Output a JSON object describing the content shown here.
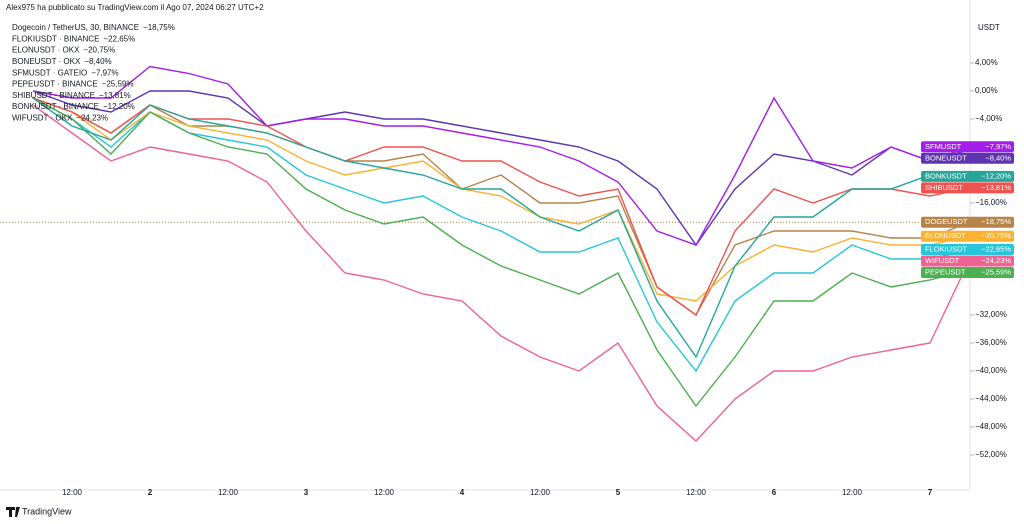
{
  "header": "Alex975 ha pubblicato su TradingView.com il Ago 07, 2024 06:27 UTC+2",
  "footer": "TradingView",
  "chart_data": {
    "type": "line",
    "y_unit": "USDT",
    "categories": [
      null,
      "12:00",
      null,
      "2",
      null,
      "12:00",
      null,
      "3",
      null,
      "12:00",
      null,
      "4",
      null,
      "12:00",
      null,
      "5",
      null,
      "12:00",
      null,
      "6",
      null,
      "12:00",
      null,
      "7",
      null
    ],
    "ylim": [
      -57,
      13
    ],
    "yticks": [
      {
        "value": 4,
        "label": "4,00%"
      },
      {
        "value": 0,
        "label": "0,00%"
      },
      {
        "value": -4,
        "label": "−4,00%"
      },
      {
        "value": -16,
        "label": "−16,00%"
      },
      {
        "value": -32,
        "label": "−32,00%"
      },
      {
        "value": -36,
        "label": "−36,00%"
      },
      {
        "value": -40,
        "label": "−40,00%"
      },
      {
        "value": -44,
        "label": "−44,00%"
      },
      {
        "value": -48,
        "label": "−48,00%"
      },
      {
        "value": -52,
        "label": "−52,00%"
      }
    ],
    "grid": false,
    "series": [
      {
        "name": "DOGEUSDT",
        "legend": "Dogecoin / TetherUS, 30, BINANCE",
        "value_label": "−18,75%",
        "color": "#b5844a",
        "values": [
          -1,
          -3,
          -6,
          -2,
          -5,
          -5,
          -6,
          -8,
          -10,
          -10,
          -9,
          -14,
          -12,
          -16,
          -16,
          -15,
          -28,
          -32,
          -22,
          -20,
          -20,
          -20,
          -21,
          -21,
          -18.75
        ]
      },
      {
        "name": "FLOKIUSDT",
        "legend": "FLOKIUSDT · BINANCE",
        "value_label": "−22,65%",
        "color": "#26c6da",
        "values": [
          -1,
          -4,
          -8,
          -3,
          -6,
          -7,
          -8,
          -12,
          -14,
          -16,
          -15,
          -18,
          -20,
          -23,
          -23,
          -21,
          -33,
          -40,
          -30,
          -26,
          -26,
          -22,
          -24,
          -24,
          -22.65
        ]
      },
      {
        "name": "ELONUSDT",
        "legend": "ELONUSDT · OKX",
        "value_label": "−20,75%",
        "color": "#f9b233",
        "values": [
          -1,
          -3,
          -7,
          -3,
          -5,
          -6,
          -7,
          -10,
          -12,
          -11,
          -10,
          -14,
          -15,
          -18,
          -19,
          -17,
          -29,
          -30,
          -25,
          -22,
          -23,
          -21,
          -22,
          -22,
          -20.75
        ]
      },
      {
        "name": "BONEUSDT",
        "legend": "BONEUSDT · OKX",
        "value_label": "−8,40%",
        "color": "#5e35b1",
        "values": [
          0,
          -2,
          -3,
          0,
          0,
          -1,
          -5,
          -4,
          -3,
          -4,
          -4,
          -5,
          -6,
          -7,
          -8,
          -10,
          -14,
          -22,
          -14,
          -9,
          -10,
          -12,
          -8,
          -10,
          -8.4
        ]
      },
      {
        "name": "SFMUSDT",
        "legend": "SFMUSDT · GATEIO",
        "value_label": "−7,97%",
        "color": "#a31ee8",
        "values": [
          0,
          -1,
          -1,
          3.5,
          2.5,
          1,
          -5,
          -4,
          -4,
          -5,
          -5,
          -6,
          -7,
          -8,
          -10,
          -13,
          -20,
          -22,
          -12,
          -1,
          -10,
          -11,
          -8,
          -10,
          -7.97
        ]
      },
      {
        "name": "PEPEUSDT",
        "legend": "PEPEUSDT · BINANCE",
        "value_label": "−25,59%",
        "color": "#4caf50",
        "values": [
          -1,
          -4,
          -9,
          -3,
          -6,
          -8,
          -9,
          -14,
          -17,
          -19,
          -18,
          -22,
          -25,
          -27,
          -29,
          -26,
          -37,
          -45,
          -38,
          -30,
          -30,
          -26,
          -28,
          -27,
          -25.59
        ]
      },
      {
        "name": "SHIBUSDT",
        "legend": "SHIBUSDT · BINANCE",
        "value_label": "−13,81%",
        "color": "#ef5350",
        "values": [
          -1,
          -3,
          -6,
          -2,
          -4,
          -4,
          -5,
          -8,
          -10,
          -8,
          -8,
          -10,
          -10,
          -13,
          -15,
          -14,
          -28,
          -32,
          -20,
          -14,
          -16,
          -14,
          -14,
          -15,
          -13.81
        ]
      },
      {
        "name": "BONKUSDT",
        "legend": "BONKUSDT · BINANCE",
        "value_label": "−12,20%",
        "color": "#26a69a",
        "values": [
          -1,
          -5,
          -7,
          -2,
          -4,
          -5,
          -6,
          -8,
          -10,
          -11,
          -12,
          -14,
          -14,
          -18,
          -20,
          -17,
          -30,
          -38,
          -25,
          -18,
          -18,
          -14,
          -14,
          -12,
          -12.2
        ]
      },
      {
        "name": "WIFUSDT",
        "legend": "WIFUSDT · OKX",
        "value_label": "−24,23%",
        "color": "#f06292",
        "values": [
          -2,
          -6,
          -10,
          -8,
          -9,
          -10,
          -13,
          -20,
          -26,
          -27,
          -29,
          -30,
          -35,
          -38,
          -40,
          -36,
          -45,
          -50,
          -44,
          -40,
          -40,
          -38,
          -37,
          -36,
          -24.23
        ]
      }
    ]
  }
}
